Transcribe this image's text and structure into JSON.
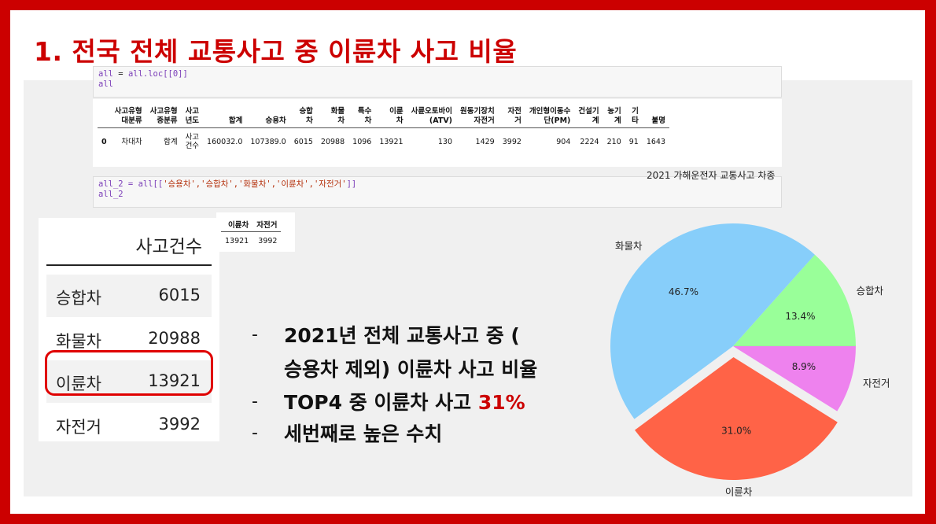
{
  "title": "1. 전국 전체 교통사고 중 이륜차 사고 비율",
  "code_cell_1": {
    "line1_var": "all",
    "line1_eq": " = ",
    "line1_rhs": "all.loc[[0]]",
    "line2": "all"
  },
  "code_cell_2": {
    "line1_prefix": "all_2 = all[[",
    "line1_args": "'승용차','승합차','화물차','이륜차','자전거'",
    "line1_suffix": "]]",
    "line2": "all_2"
  },
  "dataframe_1": {
    "columns": [
      "사고유형\n대분류",
      "사고유형\n중분류",
      "사고\n년도",
      "합계",
      "승용차",
      "승합\n차",
      "화물\n차",
      "특수\n차",
      "이륜\n차",
      "사륜오토바이\n(ATV)",
      "원동기장치\n자전거",
      "자전\n거",
      "개인형이동수\n단(PM)",
      "건설기\n계",
      "농기\n계",
      "기\n타",
      "불명"
    ],
    "index": "0",
    "row": [
      "차대차",
      "합계",
      "사고\n건수",
      "160032.0",
      "107389.0",
      "6015",
      "20988",
      "1096",
      "13921",
      "130",
      "1429",
      "3992",
      "904",
      "2224",
      "210",
      "91",
      "1643"
    ]
  },
  "dataframe_2": {
    "columns": [
      "이륜차",
      "자전거"
    ],
    "row": [
      "13921",
      "3992"
    ]
  },
  "summary_table": {
    "header": "사고건수",
    "rows": [
      {
        "label": "승합차",
        "value": "6015"
      },
      {
        "label": "화물차",
        "value": "20988"
      },
      {
        "label": "이륜차",
        "value": "13921"
      },
      {
        "label": "자전거",
        "value": "3992"
      }
    ]
  },
  "bullets": {
    "dash": "-",
    "line1": "2021년 전체 교통사고 중 (",
    "line2": "승용차 제외) 이륜차 사고 비율",
    "line3_text": "TOP4 중 이륜차 사고 ",
    "line3_highlight": "31%",
    "line4": "세번째로 높은 수치"
  },
  "chart_data": {
    "type": "pie",
    "title": "2021 가해운전자 교통사고 차종",
    "start_angle_deg": 0,
    "direction": "counterclockwise",
    "slices": [
      {
        "label": "승합차",
        "value": 6015,
        "pct_label": "13.4%",
        "color": "#99ff99",
        "explode": false
      },
      {
        "label": "화물차",
        "value": 20988,
        "pct_label": "46.7%",
        "color": "#87cefa",
        "explode": false
      },
      {
        "label": "이륜차",
        "value": 13921,
        "pct_label": "31.0%",
        "color": "#ff6347",
        "explode": true
      },
      {
        "label": "자전거",
        "value": 3992,
        "pct_label": "8.9%",
        "color": "#ee82ee",
        "explode": false
      }
    ]
  },
  "colors": {
    "frame": "#cc0000",
    "title": "#cc0000",
    "highlight_border": "#e00000",
    "highlight_text": "#cc0000"
  }
}
